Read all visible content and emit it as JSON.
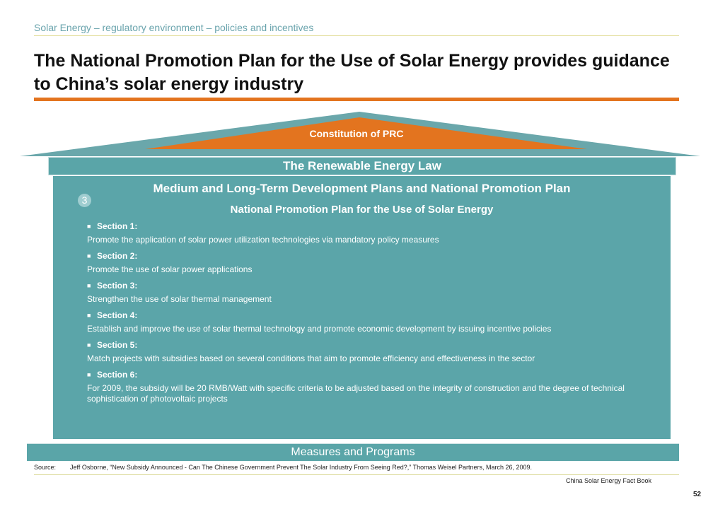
{
  "header": {
    "kicker": "Solar Energy – regulatory environment – policies and incentives",
    "title": "The National Promotion Plan for the Use of Solar Energy provides guidance to China’s solar energy industry"
  },
  "diagram": {
    "roof_label": "Constitution of PRC",
    "law_label": "The Renewable Energy Law",
    "panel_title": "Medium and Long-Term Development Plans and National Promotion Plan",
    "badge": "3",
    "panel_subtitle": "National Promotion Plan for the Use of Solar Energy",
    "sections": [
      {
        "head": "Section 1:",
        "body": "Promote the application of solar power utilization technologies via mandatory policy measures"
      },
      {
        "head": "Section 2:",
        "body": "Promote the use of solar power applications"
      },
      {
        "head": "Section 3:",
        "body": "Strengthen the use of solar thermal management"
      },
      {
        "head": "Section 4:",
        "body": "Establish and improve the use of solar thermal technology and promote economic development by issuing incentive policies"
      },
      {
        "head": "Section 5:",
        "body": "Match projects with subsidies based on several conditions that aim to promote efficiency and effectiveness in the sector"
      },
      {
        "head": "Section 6:",
        "body": "For 2009, the subsidy will be 20 RMB/Watt with specific criteria to be adjusted based on the integrity of construction and the degree of technical sophistication of photovoltaic projects"
      }
    ],
    "measures_label": "Measures and Programs"
  },
  "footer": {
    "source_label": "Source:",
    "source_text": "Jeff Osborne, “New Subsidy Announced - Can The Chinese Government Prevent The Solar Industry From Seeing Red?,” Thomas Weisel Partners, March 26, 2009.",
    "book": "China Solar Energy Fact Book",
    "page": "52"
  },
  "colors": {
    "teal": "#5ba5a9",
    "orange": "#e3741f",
    "kicker": "#6aa4ad"
  }
}
